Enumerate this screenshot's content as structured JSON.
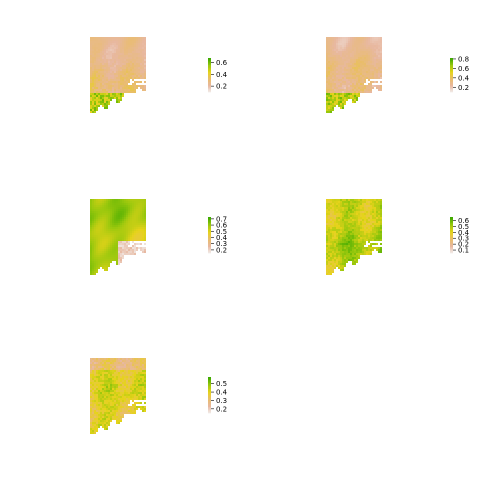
{
  "chart_data": [
    {
      "type": "heatmap",
      "colorbar": {
        "range": [
          0.1,
          0.68
        ],
        "ticks": [
          0.2,
          0.4,
          0.6
        ],
        "tick_labels": [
          "0.2",
          "0.4",
          "0.6"
        ]
      },
      "color_scale": [
        "#f2f2f2",
        "#e8b8a0",
        "#e9bd6b",
        "#e6d31a",
        "#9ac80d",
        "#3da900"
      ],
      "pattern": "mostly-low-north"
    },
    {
      "type": "heatmap",
      "colorbar": {
        "range": [
          0.1,
          0.82
        ],
        "ticks": [
          0.2,
          0.4,
          0.6,
          0.8
        ],
        "tick_labels": [
          "0.2",
          "0.4",
          "0.6",
          "0.8"
        ]
      },
      "color_scale": [
        "#f2f2f2",
        "#e8b8a0",
        "#e9bd6b",
        "#e6d31a",
        "#9ac80d",
        "#3da900"
      ],
      "pattern": "mostly-low-north"
    },
    {
      "type": "heatmap",
      "colorbar": {
        "range": [
          0.15,
          0.73
        ],
        "ticks": [
          0.2,
          0.3,
          0.4,
          0.5,
          0.6,
          0.7
        ],
        "tick_labels": [
          "0.2",
          "0.3",
          "0.4",
          "0.5",
          "0.6",
          "0.7"
        ]
      },
      "color_scale": [
        "#f2f2f2",
        "#e8b8a0",
        "#e9bd6b",
        "#e6d31a",
        "#9ac80d",
        "#3da900"
      ],
      "pattern": "high-north-low-coast"
    },
    {
      "type": "heatmap",
      "colorbar": {
        "range": [
          0.05,
          0.66
        ],
        "ticks": [
          0.1,
          0.2,
          0.3,
          0.4,
          0.5,
          0.6
        ],
        "tick_labels": [
          "0.1",
          "0.2",
          "0.3",
          "0.4",
          "0.5",
          "0.6"
        ]
      },
      "color_scale": [
        "#f2f2f2",
        "#e8b8a0",
        "#e9bd6b",
        "#e6d31a",
        "#9ac80d",
        "#3da900"
      ],
      "pattern": "high-everywhere-patchy"
    },
    {
      "type": "heatmap",
      "colorbar": {
        "range": [
          0.15,
          0.58
        ],
        "ticks": [
          0.2,
          0.3,
          0.4,
          0.5
        ],
        "tick_labels": [
          "0.2",
          "0.3",
          "0.4",
          "0.5"
        ]
      },
      "color_scale": [
        "#f2f2f2",
        "#e8b8a0",
        "#e9bd6b",
        "#e6d31a",
        "#9ac80d",
        "#3da900"
      ],
      "pattern": "green-yellow-mixed"
    }
  ]
}
